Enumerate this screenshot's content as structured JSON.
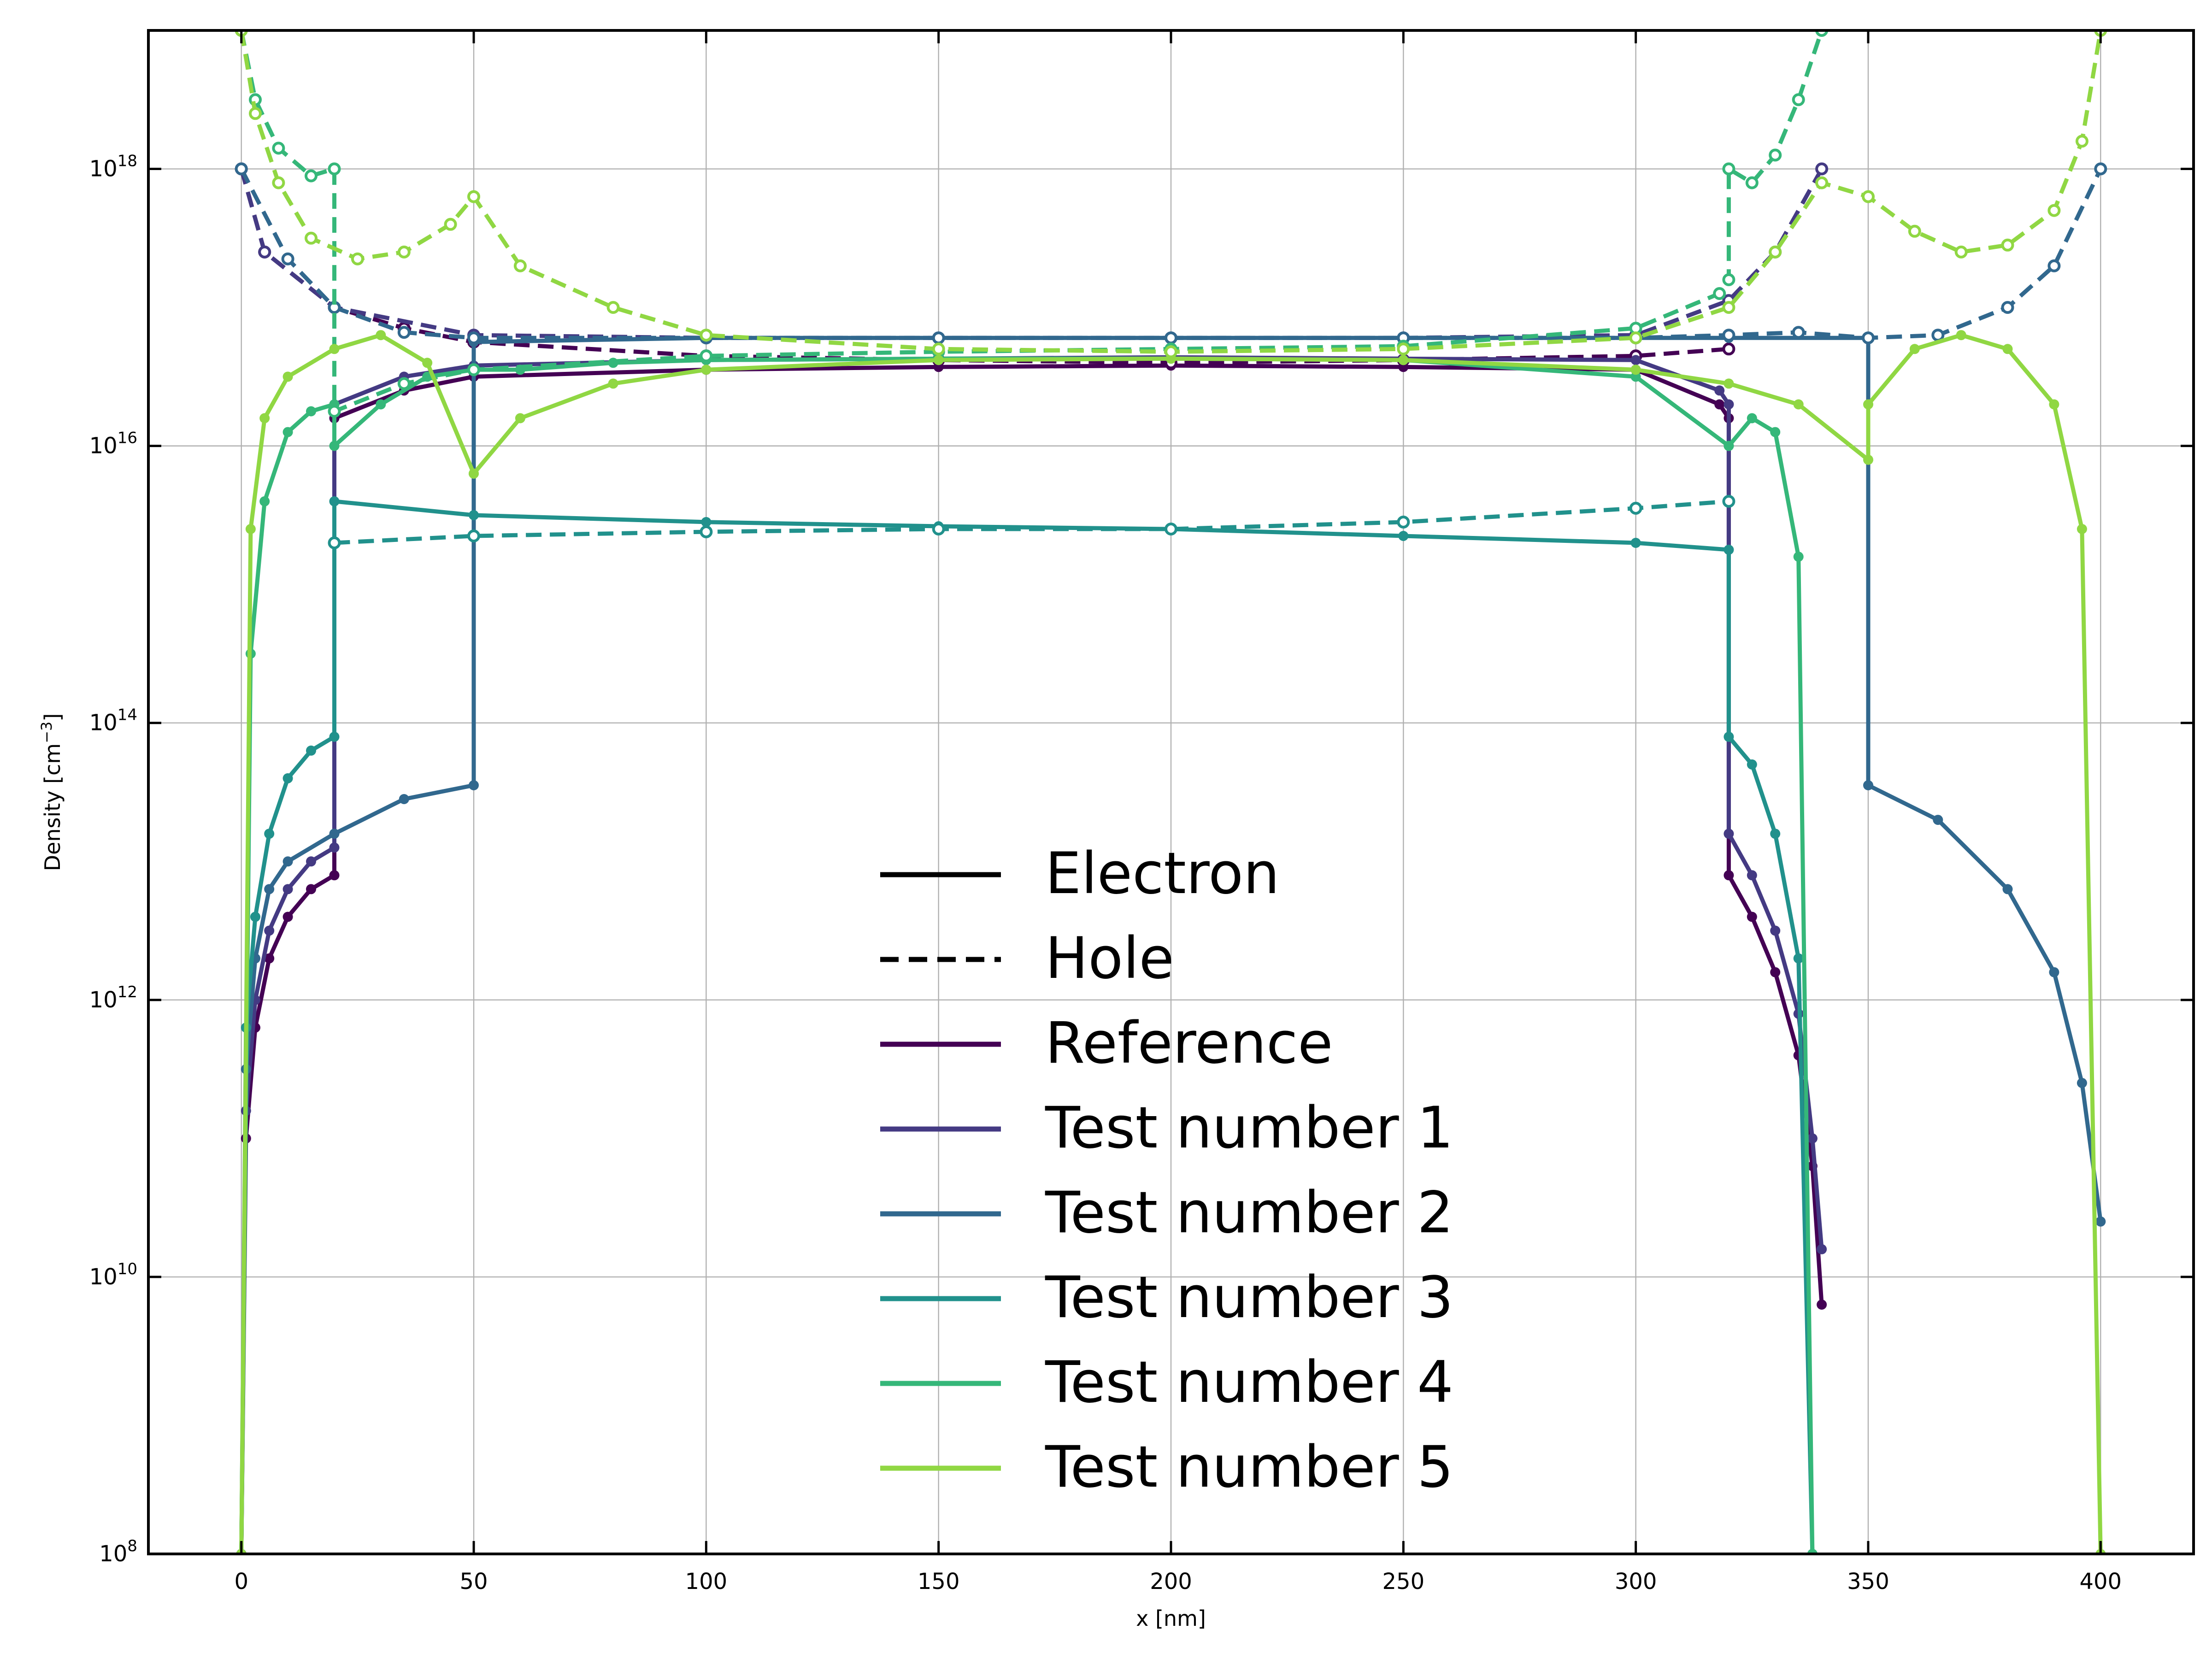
{
  "chart_data": {
    "type": "line",
    "xlabel": "x [nm]",
    "ylabel": "Density [cm",
    "ylabel_exp": "−3",
    "ylabel_end": "]",
    "xlim": [
      -20,
      420
    ],
    "ylim_log10": [
      8,
      19
    ],
    "y_scale": "log",
    "grid": true,
    "legend_position": "lower center",
    "x_ticks": [
      0,
      50,
      100,
      150,
      200,
      250,
      300,
      350,
      400
    ],
    "x_tick_labels": [
      "0",
      "50",
      "100",
      "150",
      "200",
      "250",
      "300",
      "350",
      "400"
    ],
    "y_ticks_log10": [
      8,
      10,
      12,
      14,
      16,
      18
    ],
    "y_tick_base": "10",
    "y_tick_exponents": [
      "8",
      "10",
      "12",
      "14",
      "16",
      "18"
    ],
    "legend": {
      "style_entries": [
        {
          "label": "Electron",
          "dash": "solid"
        },
        {
          "label": "Hole",
          "dash": "dashed"
        }
      ],
      "series_entries": [
        {
          "label": "Reference",
          "color": "#440154"
        },
        {
          "label": "Test number 1",
          "color": "#443a83"
        },
        {
          "label": "Test number 2",
          "color": "#31688e"
        },
        {
          "label": "Test number 3",
          "color": "#21918c"
        },
        {
          "label": "Test number 4",
          "color": "#35b779"
        },
        {
          "label": "Test number 5",
          "color": "#90d743"
        }
      ]
    },
    "series": [
      {
        "name": "Reference",
        "color": "#440154",
        "carrier": "Electron",
        "x": [
          0,
          1,
          3,
          6,
          10,
          15,
          20,
          20,
          35,
          50,
          100,
          150,
          200,
          250,
          300,
          318,
          320,
          320,
          325,
          330,
          335,
          338,
          340
        ],
        "log10_y": [
          8,
          11,
          11.8,
          12.3,
          12.6,
          12.8,
          12.9,
          16.2,
          16.4,
          16.5,
          16.55,
          16.57,
          16.58,
          16.57,
          16.55,
          16.3,
          16.2,
          12.9,
          12.6,
          12.2,
          11.6,
          10.8,
          9.8
        ]
      },
      {
        "name": "Reference",
        "color": "#440154",
        "carrier": "Hole",
        "x": [
          0,
          5,
          20,
          20,
          35,
          50,
          100,
          150,
          200,
          250,
          300,
          320
        ],
        "log10_y": [
          18,
          17.4,
          17.0,
          17.0,
          16.85,
          16.75,
          16.65,
          16.62,
          16.6,
          16.62,
          16.65,
          16.7
        ]
      },
      {
        "name": "Test number 1",
        "color": "#443a83",
        "carrier": "Electron",
        "x": [
          0,
          1,
          3,
          6,
          10,
          15,
          20,
          20,
          35,
          50,
          100,
          150,
          200,
          250,
          300,
          318,
          320,
          320,
          325,
          330,
          335,
          338,
          340
        ],
        "log10_y": [
          8,
          11.2,
          12.0,
          12.5,
          12.8,
          13.0,
          13.1,
          16.3,
          16.5,
          16.58,
          16.62,
          16.63,
          16.64,
          16.63,
          16.62,
          16.4,
          16.3,
          13.2,
          12.9,
          12.5,
          11.9,
          11.0,
          10.2
        ]
      },
      {
        "name": "Test number 1",
        "color": "#443a83",
        "carrier": "Hole",
        "x": [
          0,
          5,
          20,
          50,
          100,
          150,
          200,
          250,
          300,
          320,
          330,
          340
        ],
        "log10_y": [
          18,
          17.4,
          17.0,
          16.8,
          16.78,
          16.78,
          16.78,
          16.78,
          16.8,
          17.05,
          17.4,
          18
        ]
      },
      {
        "name": "Test number 2",
        "color": "#31688e",
        "carrier": "Electron",
        "x": [
          0,
          1,
          3,
          6,
          10,
          20,
          35,
          50,
          50,
          100,
          150,
          200,
          250,
          300,
          320,
          350,
          350,
          365,
          380,
          390,
          396,
          400
        ],
        "log10_y": [
          8,
          11.5,
          12.3,
          12.8,
          13.0,
          13.2,
          13.45,
          13.55,
          16.75,
          16.78,
          16.78,
          16.78,
          16.78,
          16.78,
          16.78,
          16.78,
          13.55,
          13.3,
          12.8,
          12.2,
          11.4,
          10.4
        ]
      },
      {
        "name": "Test number 2",
        "color": "#31688e",
        "carrier": "Hole",
        "x": [
          0,
          10,
          20,
          35,
          50,
          100,
          150,
          200,
          250,
          300,
          320,
          335,
          350,
          365,
          380,
          390,
          400
        ],
        "log10_y": [
          18,
          17.35,
          17.0,
          16.82,
          16.78,
          16.78,
          16.78,
          16.78,
          16.78,
          16.78,
          16.8,
          16.82,
          16.78,
          16.8,
          17.0,
          17.3,
          18
        ]
      },
      {
        "name": "Test number 3",
        "color": "#21918c",
        "carrier": "Electron",
        "x": [
          0,
          1,
          3,
          6,
          10,
          15,
          20,
          20,
          50,
          100,
          150,
          200,
          250,
          300,
          320,
          320,
          325,
          330,
          335,
          338
        ],
        "log10_y": [
          8,
          11.8,
          12.6,
          13.2,
          13.6,
          13.8,
          13.9,
          15.6,
          15.5,
          15.45,
          15.42,
          15.4,
          15.35,
          15.3,
          15.25,
          13.9,
          13.7,
          13.2,
          12.3,
          8
        ]
      },
      {
        "name": "Test number 3",
        "color": "#21918c",
        "carrier": "Hole",
        "x": [
          20,
          50,
          100,
          150,
          200,
          250,
          300,
          320
        ],
        "log10_y": [
          15.3,
          15.35,
          15.38,
          15.4,
          15.4,
          15.45,
          15.55,
          15.6
        ]
      },
      {
        "name": "Test number 4",
        "color": "#35b779",
        "carrier": "Electron",
        "x": [
          0,
          2,
          5,
          10,
          15,
          20,
          20,
          30,
          40,
          50,
          60,
          80,
          100,
          150,
          200,
          250,
          300,
          320,
          320,
          325,
          330,
          335,
          338
        ],
        "log10_y": [
          8,
          14.5,
          15.6,
          16.1,
          16.25,
          16.3,
          16.0,
          16.3,
          16.5,
          16.55,
          16.55,
          16.6,
          16.62,
          16.63,
          16.63,
          16.62,
          16.5,
          16.0,
          16.0,
          16.2,
          16.1,
          15.2,
          8
        ]
      },
      {
        "name": "Test number 4",
        "color": "#35b779",
        "carrier": "Hole",
        "x": [
          0,
          3,
          8,
          15,
          20,
          20,
          35,
          50,
          100,
          150,
          200,
          250,
          300,
          318,
          320,
          320,
          325,
          330,
          335,
          340
        ],
        "log10_y": [
          19,
          18.5,
          18.15,
          17.95,
          18.0,
          16.25,
          16.45,
          16.55,
          16.65,
          16.68,
          16.7,
          16.72,
          16.85,
          17.1,
          17.2,
          18.0,
          17.9,
          18.1,
          18.5,
          19
        ]
      },
      {
        "name": "Test number 5",
        "color": "#90d743",
        "carrier": "Electron",
        "x": [
          0,
          2,
          5,
          10,
          20,
          30,
          40,
          50,
          50,
          60,
          80,
          100,
          150,
          200,
          250,
          300,
          320,
          335,
          350,
          350,
          360,
          370,
          380,
          390,
          396,
          400
        ],
        "log10_y": [
          8,
          15.4,
          16.2,
          16.5,
          16.7,
          16.8,
          16.6,
          15.8,
          15.8,
          16.2,
          16.45,
          16.55,
          16.62,
          16.63,
          16.62,
          16.55,
          16.45,
          16.3,
          15.9,
          16.3,
          16.7,
          16.8,
          16.7,
          16.3,
          15.4,
          8
        ]
      },
      {
        "name": "Test number 5",
        "color": "#90d743",
        "carrier": "Hole",
        "x": [
          0,
          3,
          8,
          15,
          25,
          35,
          45,
          50,
          60,
          80,
          100,
          150,
          200,
          250,
          300,
          320,
          330,
          340,
          350,
          360,
          370,
          380,
          390,
          396,
          400
        ],
        "log10_y": [
          19,
          18.4,
          17.9,
          17.5,
          17.35,
          17.4,
          17.6,
          17.8,
          17.3,
          17.0,
          16.8,
          16.7,
          16.68,
          16.7,
          16.78,
          17.0,
          17.4,
          17.9,
          17.8,
          17.55,
          17.4,
          17.45,
          17.7,
          18.2,
          19
        ]
      }
    ]
  }
}
